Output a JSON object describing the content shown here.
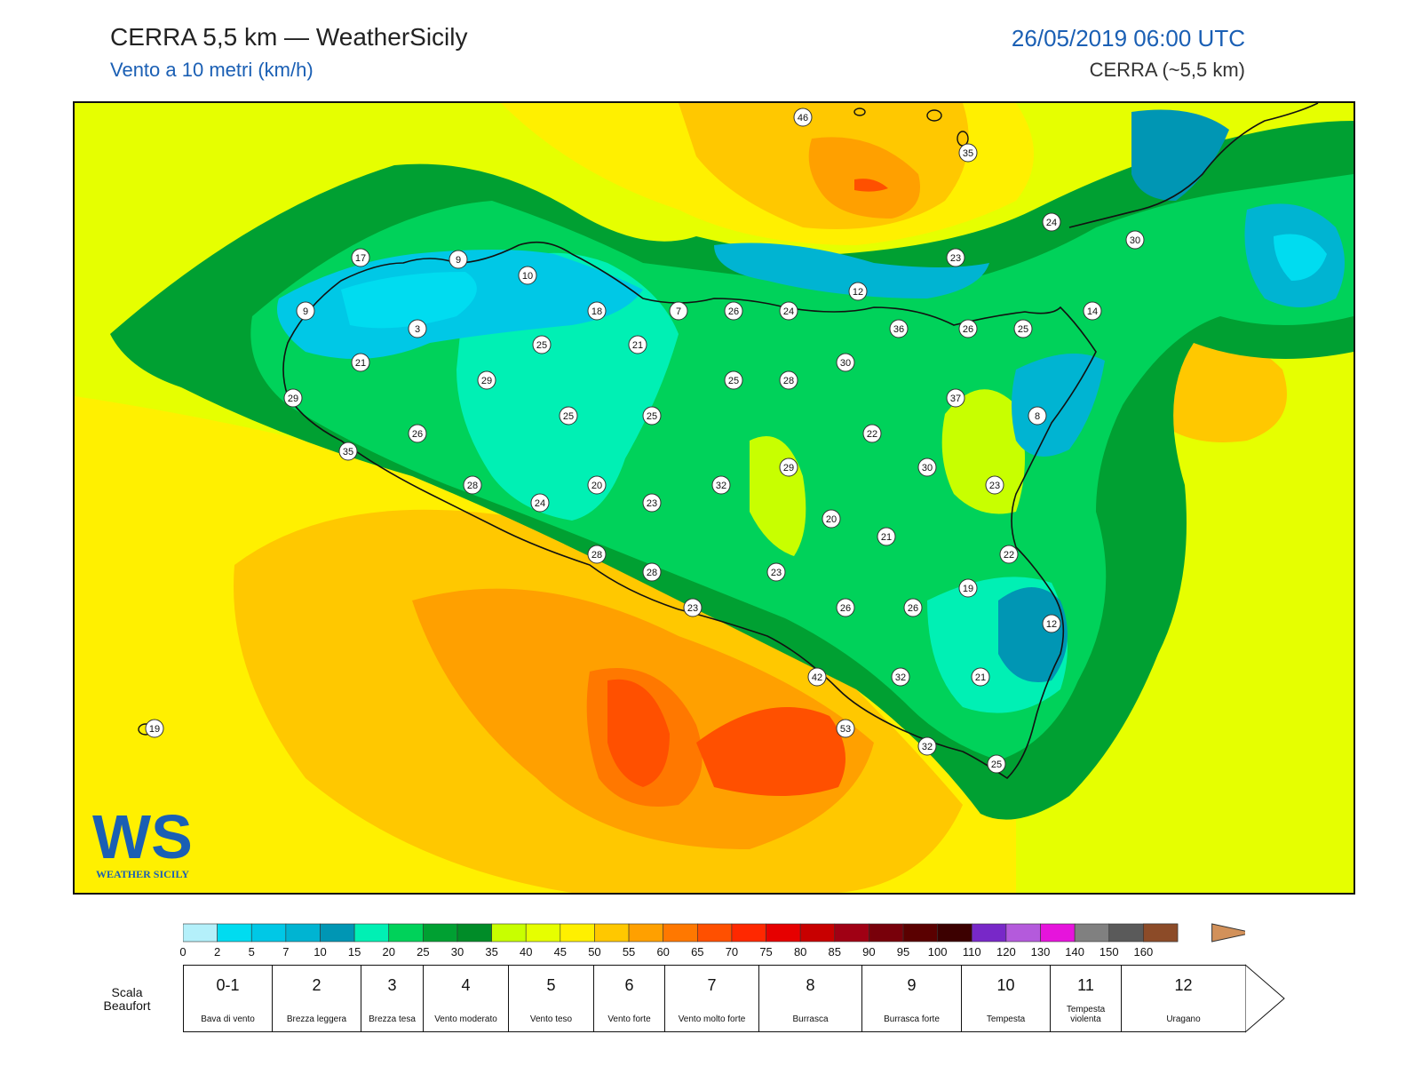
{
  "header": {
    "title": "CERRA 5,5 km — WeatherSicily",
    "subtitle": "Vento a 10 metri (km/h)",
    "datetime": "26/05/2019 06:00 UTC",
    "model": "CERRA (~5,5 km)"
  },
  "logo": {
    "text": "WEATHER SICILY",
    "mark": "WS"
  },
  "map": {
    "stations": [
      {
        "v": "46"
      },
      {
        "v": "35"
      },
      {
        "v": "24"
      },
      {
        "v": "30"
      },
      {
        "v": "23"
      },
      {
        "v": "17"
      },
      {
        "v": "9"
      },
      {
        "v": "10"
      },
      {
        "v": "12"
      },
      {
        "v": "9"
      },
      {
        "v": "18"
      },
      {
        "v": "7"
      },
      {
        "v": "26"
      },
      {
        "v": "24"
      },
      {
        "v": "3"
      },
      {
        "v": "36"
      },
      {
        "v": "26"
      },
      {
        "v": "25"
      },
      {
        "v": "14"
      },
      {
        "v": "25"
      },
      {
        "v": "21"
      },
      {
        "v": "21"
      },
      {
        "v": "30"
      },
      {
        "v": "29"
      },
      {
        "v": "25"
      },
      {
        "v": "28"
      },
      {
        "v": "37"
      },
      {
        "v": "29"
      },
      {
        "v": "25"
      },
      {
        "v": "25"
      },
      {
        "v": "8"
      },
      {
        "v": "26"
      },
      {
        "v": "22"
      },
      {
        "v": "35"
      },
      {
        "v": "29"
      },
      {
        "v": "30"
      },
      {
        "v": "28"
      },
      {
        "v": "20"
      },
      {
        "v": "23"
      },
      {
        "v": "32"
      },
      {
        "v": "24"
      },
      {
        "v": "23"
      },
      {
        "v": "20"
      },
      {
        "v": "21"
      },
      {
        "v": "28"
      },
      {
        "v": "22"
      },
      {
        "v": "28"
      },
      {
        "v": "23"
      },
      {
        "v": "19"
      },
      {
        "v": "23"
      },
      {
        "v": "26"
      },
      {
        "v": "26"
      },
      {
        "v": "12"
      },
      {
        "v": "42"
      },
      {
        "v": "32"
      },
      {
        "v": "21"
      },
      {
        "v": "19"
      },
      {
        "v": "53"
      },
      {
        "v": "32"
      },
      {
        "v": "25"
      }
    ]
  },
  "scale": {
    "colors": [
      "#b4f0fa",
      "#00dcf0",
      "#00c8e6",
      "#00b4d2",
      "#0096b4",
      "#00f0b4",
      "#00d25a",
      "#00a032",
      "#008c28",
      "#c8ff00",
      "#e6ff00",
      "#fff000",
      "#ffc800",
      "#ffa000",
      "#ff7800",
      "#ff5000",
      "#ff2800",
      "#e60000",
      "#c80000",
      "#a00014",
      "#78000a",
      "#5a0000",
      "#3c0000",
      "#7828c8",
      "#b45adc",
      "#e614dc",
      "#808080",
      "#5a5a5a",
      "#000000",
      "#8c4b28",
      "#d2915a"
    ],
    "ticks": [
      "0",
      "2",
      "5",
      "7",
      "10",
      "15",
      "20",
      "25",
      "30",
      "35",
      "40",
      "45",
      "50",
      "55",
      "60",
      "65",
      "70",
      "75",
      "80",
      "85",
      "90",
      "95",
      "100",
      "110",
      "120",
      "130",
      "140",
      "150",
      "160"
    ]
  },
  "beaufort": {
    "title": "Scala Beaufort",
    "cells": [
      {
        "num": "0-1",
        "desc": "Bava di vento"
      },
      {
        "num": "2",
        "desc": "Brezza leggera"
      },
      {
        "num": "3",
        "desc": "Brezza tesa"
      },
      {
        "num": "4",
        "desc": "Vento moderato"
      },
      {
        "num": "5",
        "desc": "Vento teso"
      },
      {
        "num": "6",
        "desc": "Vento forte"
      },
      {
        "num": "7",
        "desc": "Vento molto forte"
      },
      {
        "num": "8",
        "desc": "Burrasca"
      },
      {
        "num": "9",
        "desc": "Burrasca forte"
      },
      {
        "num": "10",
        "desc": "Tempesta"
      },
      {
        "num": "11",
        "desc": "Tempesta violenta"
      },
      {
        "num": "12",
        "desc": "Uragano"
      }
    ]
  }
}
